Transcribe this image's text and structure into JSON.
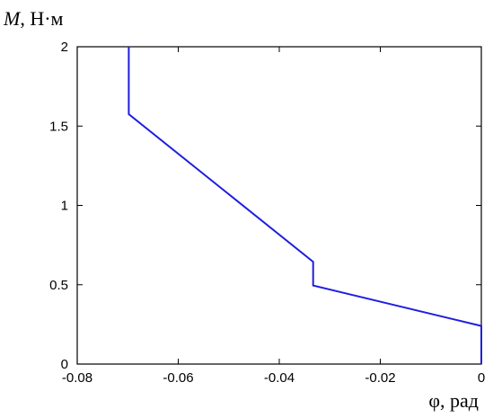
{
  "chart_data": {
    "type": "line",
    "xlabel": "φ, рад",
    "ylabel_var": "M",
    "ylabel_unit": ", Н·м",
    "xlim": [
      -0.08,
      0
    ],
    "ylim": [
      0,
      2
    ],
    "x_ticks": [
      -0.08,
      -0.06,
      -0.04,
      -0.02,
      0
    ],
    "x_tick_labels": [
      "-0.08",
      "-0.06",
      "-0.04",
      "-0.02",
      "0"
    ],
    "y_ticks": [
      0,
      0.5,
      1,
      1.5,
      2
    ],
    "y_tick_labels": [
      "0",
      "0.5",
      "1",
      "1.5",
      "2"
    ],
    "grid": false,
    "series": [
      {
        "color": "#1f1fe0",
        "x": [
          -0.0698,
          -0.0698,
          -0.0333,
          -0.0333,
          0,
          0
        ],
        "y": [
          2.0,
          1.575,
          0.645,
          0.495,
          0.24,
          0.0
        ]
      }
    ]
  }
}
